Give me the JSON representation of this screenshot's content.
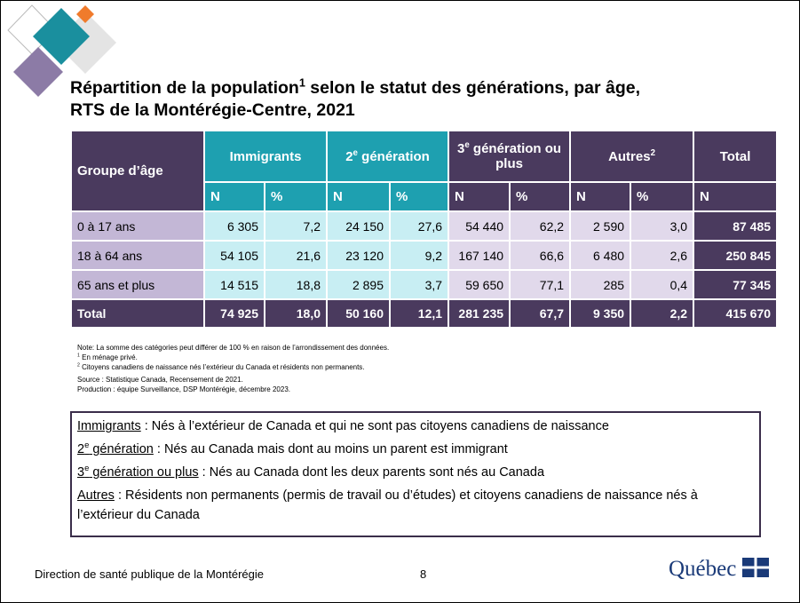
{
  "title": {
    "line1_a": "Répartition de la population",
    "line1_sup": "1",
    "line1_b": " selon le statut des générations, par âge,",
    "line2": "RTS de la Montérégie-Centre, 2021"
  },
  "table": {
    "headers": [
      {
        "text": "Groupe d’âge"
      },
      {
        "text": "Immigrants"
      },
      {
        "text": "2",
        "sup": "e",
        "rest": " génération"
      },
      {
        "text": "3",
        "sup": "e",
        "rest": " génération ou plus"
      },
      {
        "text": "Autres",
        "sup": "2"
      },
      {
        "text": "Total"
      }
    ],
    "subheaders": [
      "N",
      "%",
      "N",
      "%",
      "N",
      "%",
      "N",
      "%",
      "N"
    ],
    "rows": [
      [
        "0 à 17 ans",
        "6 305",
        "7,2",
        "24 150",
        "27,6",
        "54 440",
        "62,2",
        "2 590",
        "3,0",
        "87 485"
      ],
      [
        "18 à 64 ans",
        "54 105",
        "21,6",
        "23 120",
        "9,2",
        "167 140",
        "66,6",
        "6 480",
        "2,6",
        "250 845"
      ],
      [
        "65 ans et plus",
        "14 515",
        "18,8",
        "2 895",
        "3,7",
        "59 650",
        "77,1",
        "285",
        "0,4",
        "77 345"
      ]
    ],
    "total": [
      "Total",
      "74 925",
      "18,0",
      "50 160",
      "12,1",
      "281 235",
      "67,7",
      "9 350",
      "2,2",
      "415 670"
    ]
  },
  "notes": [
    {
      "text": "Note: La somme des catégories peut différer de 100 % en raison de l’arrondissement des données."
    },
    {
      "sup": "1",
      "text": " En ménage privé."
    },
    {
      "sup": "2",
      "text": " Citoyens canadiens de naissance nés l’extérieur du Canada et résidents non permanents."
    },
    {
      "text": "Source : Statistique Canada, Recensement de 2021."
    },
    {
      "text": "Production : équipe Surveillance, DSP Montérégie, décembre 2023."
    }
  ],
  "definitions": [
    {
      "term": "Immigrants",
      "text": " : Nés à l’extérieur de Canada et qui ne sont pas citoyens canadiens de naissance"
    },
    {
      "term": "2",
      "term_sup": "e",
      "term_rest": " génération",
      "text": " : Nés au Canada mais dont au moins un parent est immigrant"
    },
    {
      "term": "3",
      "term_sup": "e",
      "term_rest": " génération ou plus",
      "text": " : Nés au Canada dont les deux parents sont nés au Canada"
    },
    {
      "term": "Autres",
      "text": " : Résidents non permanents (permis de travail ou d’études) et citoyens canadiens de naissance nés à l’extérieur du Canada"
    }
  ],
  "footer": {
    "left": "Direction de santé publique de la Montérégie",
    "page": "8",
    "logo": "Québec"
  }
}
